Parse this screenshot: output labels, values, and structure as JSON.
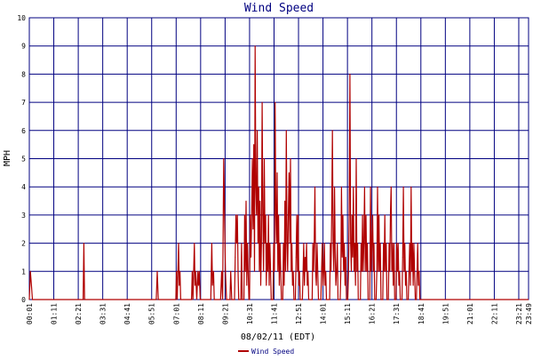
{
  "chart_data": {
    "type": "line",
    "title": "Wind Speed",
    "xlabel": "08/02/11 (EDT)",
    "ylabel": "MPH",
    "ylim": [
      0,
      10
    ],
    "yticks": [
      0,
      1,
      2,
      3,
      4,
      5,
      6,
      7,
      8,
      9,
      10
    ],
    "xlim": [
      "00:01",
      "23:49"
    ],
    "xticks": [
      "00:01",
      "01:11",
      "02:21",
      "03:31",
      "04:41",
      "05:51",
      "07:01",
      "08:11",
      "09:21",
      "10:31",
      "11:41",
      "12:51",
      "14:01",
      "15:11",
      "16:21",
      "17:31",
      "18:41",
      "19:51",
      "21:01",
      "22:11",
      "23:21",
      "23:49"
    ],
    "grid": true,
    "legend": "bottom-left",
    "colors": {
      "series": "#b00000",
      "grid": "#000080",
      "title": "#000080"
    },
    "series": [
      {
        "name": "Wind Speed",
        "points": [
          [
            "00:01",
            0
          ],
          [
            "00:04",
            1
          ],
          [
            "00:07",
            0.5
          ],
          [
            "00:10",
            0
          ],
          [
            "02:35",
            0
          ],
          [
            "02:37",
            2
          ],
          [
            "02:39",
            0
          ],
          [
            "06:04",
            0
          ],
          [
            "06:07",
            1
          ],
          [
            "06:10",
            0
          ],
          [
            "07:00",
            0
          ],
          [
            "07:02",
            1
          ],
          [
            "07:04",
            0
          ],
          [
            "07:08",
            2
          ],
          [
            "07:10",
            0.5
          ],
          [
            "07:12",
            1
          ],
          [
            "07:14",
            0
          ],
          [
            "07:45",
            0
          ],
          [
            "07:47",
            1
          ],
          [
            "07:49",
            0
          ],
          [
            "07:53",
            2
          ],
          [
            "07:55",
            0.5
          ],
          [
            "07:57",
            1
          ],
          [
            "08:00",
            0
          ],
          [
            "08:03",
            1
          ],
          [
            "08:05",
            0.5
          ],
          [
            "08:07",
            1
          ],
          [
            "08:10",
            0
          ],
          [
            "08:40",
            0
          ],
          [
            "08:43",
            2
          ],
          [
            "08:45",
            0.5
          ],
          [
            "08:48",
            1
          ],
          [
            "08:50",
            0
          ],
          [
            "09:08",
            0
          ],
          [
            "09:11",
            1
          ],
          [
            "09:14",
            0
          ],
          [
            "09:17",
            5
          ],
          [
            "09:20",
            2.5
          ],
          [
            "09:22",
            1
          ],
          [
            "09:25",
            0
          ],
          [
            "09:35",
            0
          ],
          [
            "09:37",
            1
          ],
          [
            "09:40",
            0
          ],
          [
            "09:48",
            0
          ],
          [
            "09:50",
            1.5
          ],
          [
            "09:52",
            3
          ],
          [
            "09:54",
            2
          ],
          [
            "09:56",
            3
          ],
          [
            "09:58",
            1
          ],
          [
            "10:00",
            0
          ],
          [
            "10:06",
            0
          ],
          [
            "10:08",
            2
          ],
          [
            "10:10",
            0
          ],
          [
            "10:15",
            0
          ],
          [
            "10:17",
            3
          ],
          [
            "10:19",
            1
          ],
          [
            "10:21",
            3.5
          ],
          [
            "10:23",
            0.5
          ],
          [
            "10:25",
            2
          ],
          [
            "10:27",
            1
          ],
          [
            "10:29",
            0
          ],
          [
            "10:31",
            0
          ],
          [
            "10:33",
            3
          ],
          [
            "10:35",
            1.5
          ],
          [
            "10:37",
            3
          ],
          [
            "10:39",
            5
          ],
          [
            "10:41",
            2.5
          ],
          [
            "10:43",
            5.5
          ],
          [
            "10:45",
            1
          ],
          [
            "10:47",
            9
          ],
          [
            "10:49",
            4
          ],
          [
            "10:51",
            3
          ],
          [
            "10:53",
            6
          ],
          [
            "10:55",
            2
          ],
          [
            "10:57",
            4
          ],
          [
            "10:59",
            1
          ],
          [
            "11:01",
            3.5
          ],
          [
            "11:03",
            0.5
          ],
          [
            "11:05",
            2
          ],
          [
            "11:07",
            7
          ],
          [
            "11:09",
            3
          ],
          [
            "11:11",
            1
          ],
          [
            "11:13",
            5
          ],
          [
            "11:15",
            2
          ],
          [
            "11:17",
            3
          ],
          [
            "11:19",
            0.5
          ],
          [
            "11:21",
            2
          ],
          [
            "11:23",
            1
          ],
          [
            "11:25",
            3
          ],
          [
            "11:27",
            0.5
          ],
          [
            "11:29",
            2
          ],
          [
            "11:31",
            1
          ],
          [
            "11:33",
            0
          ],
          [
            "11:38",
            0
          ],
          [
            "11:40",
            2
          ],
          [
            "11:42",
            1
          ],
          [
            "11:44",
            7
          ],
          [
            "11:46",
            3
          ],
          [
            "11:48",
            2
          ],
          [
            "11:50",
            4.5
          ],
          [
            "11:52",
            1
          ],
          [
            "11:54",
            3
          ],
          [
            "11:56",
            0.5
          ],
          [
            "11:58",
            2
          ],
          [
            "12:00",
            1
          ],
          [
            "12:02",
            0
          ],
          [
            "12:06",
            0
          ],
          [
            "12:08",
            2
          ],
          [
            "12:10",
            0.5
          ],
          [
            "12:12",
            3.5
          ],
          [
            "12:14",
            1
          ],
          [
            "12:16",
            6
          ],
          [
            "12:18",
            2
          ],
          [
            "12:20",
            1
          ],
          [
            "12:22",
            3
          ],
          [
            "12:24",
            4.5
          ],
          [
            "12:26",
            2
          ],
          [
            "12:28",
            5
          ],
          [
            "12:30",
            1
          ],
          [
            "12:32",
            2
          ],
          [
            "12:34",
            0.5
          ],
          [
            "12:36",
            1
          ],
          [
            "12:38",
            0
          ],
          [
            "12:42",
            0
          ],
          [
            "12:44",
            1.5
          ],
          [
            "12:46",
            3
          ],
          [
            "12:48",
            1
          ],
          [
            "12:50",
            3
          ],
          [
            "12:52",
            0.5
          ],
          [
            "12:54",
            1
          ],
          [
            "12:56",
            0
          ],
          [
            "13:02",
            0
          ],
          [
            "13:04",
            1
          ],
          [
            "13:06",
            2
          ],
          [
            "13:08",
            0.5
          ],
          [
            "13:10",
            1.5
          ],
          [
            "13:12",
            1
          ],
          [
            "13:14",
            2
          ],
          [
            "13:16",
            0.5
          ],
          [
            "13:18",
            1
          ],
          [
            "13:20",
            0
          ],
          [
            "13:30",
            0
          ],
          [
            "13:32",
            2
          ],
          [
            "13:34",
            1
          ],
          [
            "13:36",
            2
          ],
          [
            "13:38",
            4
          ],
          [
            "13:40",
            1
          ],
          [
            "13:42",
            0.5
          ],
          [
            "13:44",
            2
          ],
          [
            "13:46",
            1
          ],
          [
            "13:48",
            0
          ],
          [
            "13:55",
            0
          ],
          [
            "13:57",
            1
          ],
          [
            "13:59",
            2
          ],
          [
            "14:01",
            0.5
          ],
          [
            "14:03",
            1
          ],
          [
            "14:05",
            2
          ],
          [
            "14:07",
            0.5
          ],
          [
            "14:09",
            1
          ],
          [
            "14:11",
            0
          ],
          [
            "14:20",
            0
          ],
          [
            "14:22",
            2
          ],
          [
            "14:24",
            1
          ],
          [
            "14:26",
            3
          ],
          [
            "14:28",
            6
          ],
          [
            "14:30",
            2
          ],
          [
            "14:32",
            1
          ],
          [
            "14:34",
            4
          ],
          [
            "14:36",
            1.5
          ],
          [
            "14:38",
            0.5
          ],
          [
            "14:40",
            1
          ],
          [
            "14:42",
            2
          ],
          [
            "14:44",
            0
          ],
          [
            "14:50",
            0
          ],
          [
            "14:52",
            1
          ],
          [
            "14:54",
            4
          ],
          [
            "14:56",
            1.5
          ],
          [
            "14:58",
            3
          ],
          [
            "15:00",
            1
          ],
          [
            "15:02",
            2
          ],
          [
            "15:04",
            0.5
          ],
          [
            "15:06",
            1.5
          ],
          [
            "15:08",
            0
          ],
          [
            "15:12",
            0
          ],
          [
            "15:14",
            1
          ],
          [
            "15:16",
            3
          ],
          [
            "15:18",
            8
          ],
          [
            "15:20",
            2
          ],
          [
            "15:22",
            1
          ],
          [
            "15:24",
            3
          ],
          [
            "15:26",
            1.5
          ],
          [
            "15:28",
            4
          ],
          [
            "15:30",
            1
          ],
          [
            "15:32",
            2
          ],
          [
            "15:34",
            0.5
          ],
          [
            "15:36",
            5
          ],
          [
            "15:38",
            1
          ],
          [
            "15:40",
            2
          ],
          [
            "15:42",
            0
          ],
          [
            "15:48",
            0
          ],
          [
            "15:50",
            2
          ],
          [
            "15:52",
            1
          ],
          [
            "15:54",
            3
          ],
          [
            "15:56",
            1
          ],
          [
            "15:58",
            2
          ],
          [
            "16:00",
            4
          ],
          [
            "16:02",
            1
          ],
          [
            "16:04",
            3
          ],
          [
            "16:06",
            1
          ],
          [
            "16:08",
            2
          ],
          [
            "16:10",
            0
          ],
          [
            "16:15",
            0
          ],
          [
            "16:17",
            4
          ],
          [
            "16:19",
            1
          ],
          [
            "16:21",
            2
          ],
          [
            "16:23",
            3
          ],
          [
            "16:25",
            1
          ],
          [
            "16:27",
            2
          ],
          [
            "16:29",
            0
          ],
          [
            "16:33",
            0
          ],
          [
            "16:35",
            1
          ],
          [
            "16:37",
            4
          ],
          [
            "16:39",
            1
          ],
          [
            "16:41",
            3
          ],
          [
            "16:43",
            1
          ],
          [
            "16:45",
            2
          ],
          [
            "16:47",
            0
          ],
          [
            "16:52",
            0
          ],
          [
            "16:54",
            2
          ],
          [
            "16:56",
            1
          ],
          [
            "16:58",
            3
          ],
          [
            "17:00",
            1
          ],
          [
            "17:02",
            2
          ],
          [
            "17:04",
            0
          ],
          [
            "17:08",
            0
          ],
          [
            "17:10",
            2
          ],
          [
            "17:12",
            1
          ],
          [
            "17:14",
            3
          ],
          [
            "17:16",
            4
          ],
          [
            "17:18",
            1
          ],
          [
            "17:20",
            2
          ],
          [
            "17:22",
            0.5
          ],
          [
            "17:24",
            2
          ],
          [
            "17:26",
            0
          ],
          [
            "17:30",
            0
          ],
          [
            "17:32",
            2
          ],
          [
            "17:34",
            1
          ],
          [
            "17:36",
            2
          ],
          [
            "17:38",
            0.5
          ],
          [
            "17:40",
            1
          ],
          [
            "17:42",
            0
          ],
          [
            "17:47",
            0
          ],
          [
            "17:49",
            1.5
          ],
          [
            "17:51",
            4
          ],
          [
            "17:53",
            1
          ],
          [
            "17:55",
            2
          ],
          [
            "17:57",
            0.5
          ],
          [
            "17:59",
            1
          ],
          [
            "18:01",
            0
          ],
          [
            "18:05",
            0
          ],
          [
            "18:07",
            1
          ],
          [
            "18:09",
            2
          ],
          [
            "18:11",
            0.5
          ],
          [
            "18:13",
            4
          ],
          [
            "18:15",
            1
          ],
          [
            "18:17",
            2
          ],
          [
            "18:19",
            0.5
          ],
          [
            "18:21",
            2
          ],
          [
            "18:23",
            1
          ],
          [
            "18:25",
            0
          ],
          [
            "18:28",
            0
          ],
          [
            "18:30",
            1
          ],
          [
            "18:32",
            2
          ],
          [
            "18:34",
            0.5
          ],
          [
            "18:36",
            1
          ],
          [
            "18:38",
            0
          ]
        ]
      }
    ]
  }
}
